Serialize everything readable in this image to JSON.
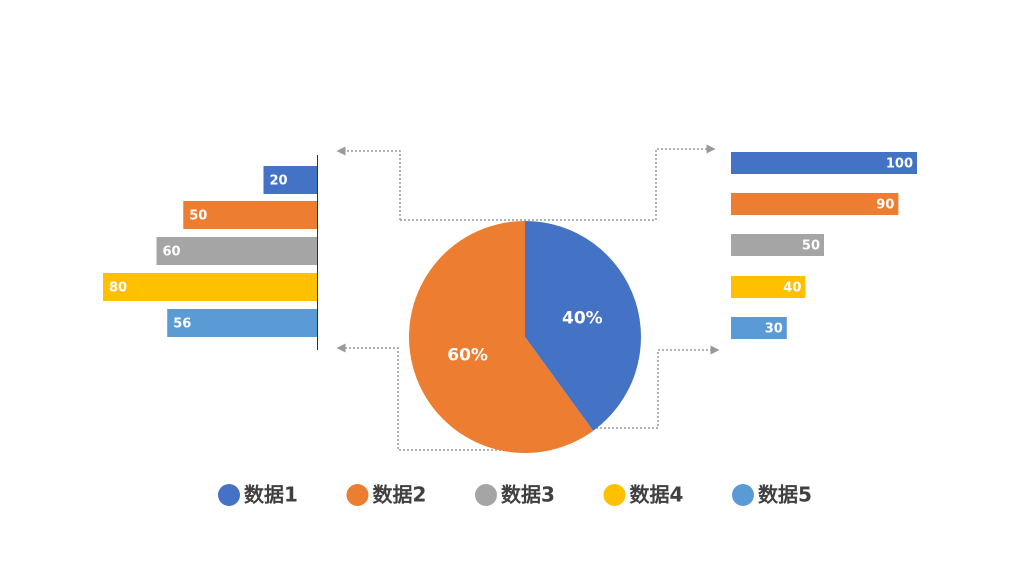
{
  "chart_data": [
    {
      "type": "bar",
      "orientation": "horizontal",
      "direction": "leftward",
      "values": [
        20,
        50,
        60,
        80,
        56
      ],
      "colors": [
        "#4472c4",
        "#ed7d31",
        "#a5a5a5",
        "#ffc000",
        "#5b9bd5"
      ],
      "xlim": [
        0,
        80
      ]
    },
    {
      "type": "pie",
      "values": [
        40,
        60
      ],
      "value_labels": [
        "40%",
        "60%"
      ],
      "colors": [
        "#4472c4",
        "#ed7d31"
      ]
    },
    {
      "type": "bar",
      "orientation": "horizontal",
      "direction": "rightward",
      "values": [
        100,
        90,
        50,
        40,
        30
      ],
      "colors": [
        "#4472c4",
        "#ed7d31",
        "#a5a5a5",
        "#ffc000",
        "#5b9bd5"
      ],
      "xlim": [
        0,
        100
      ]
    }
  ],
  "legend": [
    {
      "name": "数据1",
      "color": "#4472c4"
    },
    {
      "name": "数据2",
      "color": "#ed7d31"
    },
    {
      "name": "数据3",
      "color": "#a5a5a5"
    },
    {
      "name": "数据4",
      "color": "#ffc000"
    },
    {
      "name": "数据5",
      "color": "#5b9bd5"
    }
  ]
}
